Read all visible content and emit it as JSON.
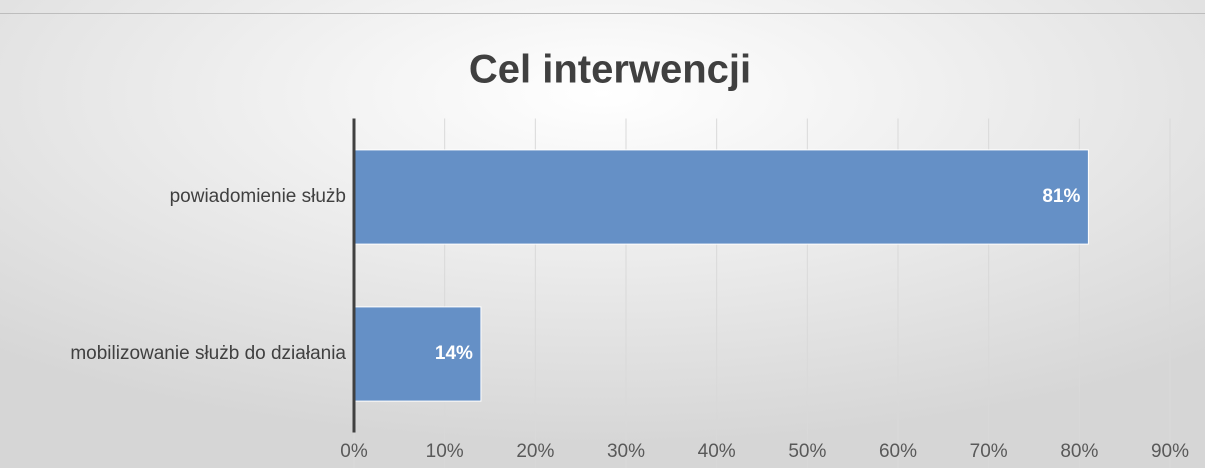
{
  "chart_data": {
    "type": "bar",
    "orientation": "horizontal",
    "title": "Cel interwencji",
    "categories": [
      "powiadomienie służb",
      "mobilizowanie służb do działania"
    ],
    "values": [
      81,
      14
    ],
    "value_labels": [
      "81%",
      "14%"
    ],
    "color": "#6590c6",
    "xlim": [
      0,
      90
    ],
    "xticks": [
      {
        "value": 0,
        "label": "0%"
      },
      {
        "value": 10,
        "label": "10%"
      },
      {
        "value": 20,
        "label": "20%"
      },
      {
        "value": 30,
        "label": "30%"
      },
      {
        "value": 40,
        "label": "40%"
      },
      {
        "value": 50,
        "label": "50%"
      },
      {
        "value": 60,
        "label": "60%"
      },
      {
        "value": 70,
        "label": "70%"
      },
      {
        "value": 80,
        "label": "80%"
      },
      {
        "value": 90,
        "label": "90%"
      }
    ],
    "grid": true
  }
}
